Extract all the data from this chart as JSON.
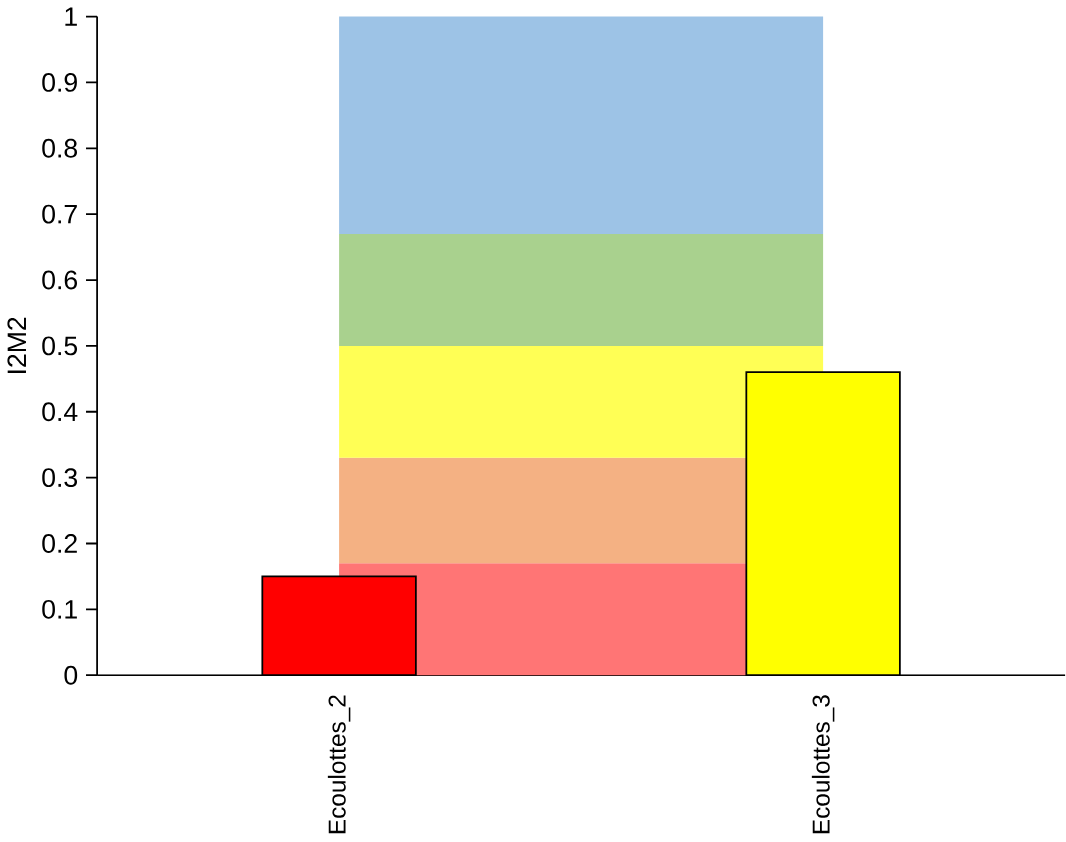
{
  "chart_data": {
    "type": "bar",
    "ylabel": "I2M2",
    "categories": [
      "Ecoulottes_2",
      "Ecoulottes_3"
    ],
    "values": [
      0.15,
      0.46
    ],
    "colors": [
      "#ff0000",
      "#ffff00"
    ],
    "ylim": [
      0,
      1
    ],
    "yticks": [
      0,
      0.1,
      0.2,
      0.3,
      0.4,
      0.5,
      0.6,
      0.7,
      0.8,
      0.9,
      1
    ],
    "bands": [
      {
        "axis": "y",
        "from": 0,
        "to": 0.17,
        "color": "#ff7575"
      },
      {
        "axis": "y",
        "from": 0.17,
        "to": 0.33,
        "color": "#f4b183"
      },
      {
        "axis": "y",
        "from": 0.33,
        "to": 0.5,
        "color": "#ffff55"
      },
      {
        "axis": "y",
        "from": 0.5,
        "to": 0.67,
        "color": "#a9d18e"
      },
      {
        "axis": "y",
        "from": 0.67,
        "to": 1,
        "color": "#9dc3e6"
      }
    ]
  }
}
